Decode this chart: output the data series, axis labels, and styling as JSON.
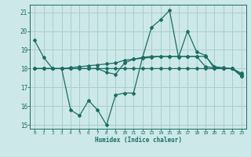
{
  "xlabel": "Humidex (Indice chaleur)",
  "background_color": "#cce8e8",
  "grid_color": "#aacece",
  "line_color": "#1a6e64",
  "xlim": [
    -0.5,
    23.5
  ],
  "ylim": [
    14.8,
    21.4
  ],
  "x": [
    0,
    1,
    2,
    3,
    4,
    5,
    6,
    7,
    8,
    9,
    10,
    11,
    12,
    13,
    14,
    15,
    16,
    17,
    18,
    19,
    20,
    21,
    22,
    23
  ],
  "line1": [
    19.5,
    18.6,
    18.0,
    18.0,
    15.8,
    15.5,
    16.3,
    15.8,
    15.0,
    16.6,
    16.7,
    16.7,
    18.6,
    20.2,
    20.6,
    21.1,
    18.6,
    20.0,
    18.9,
    18.7,
    18.0,
    18.0,
    18.0,
    17.6
  ],
  "line2": [
    18.0,
    18.0,
    18.0,
    18.0,
    18.05,
    18.1,
    18.15,
    18.2,
    18.25,
    18.3,
    18.45,
    18.5,
    18.55,
    18.6,
    18.65,
    18.65,
    18.65,
    18.65,
    18.65,
    18.65,
    18.1,
    18.05,
    18.0,
    17.75
  ],
  "line3": [
    18.0,
    18.0,
    18.0,
    18.0,
    18.0,
    18.0,
    18.0,
    18.0,
    18.0,
    18.0,
    18.0,
    18.0,
    18.0,
    18.0,
    18.0,
    18.0,
    18.0,
    18.0,
    18.0,
    18.0,
    18.0,
    18.0,
    18.0,
    17.6
  ],
  "line4": [
    18.0,
    18.0,
    18.0,
    18.0,
    18.0,
    18.0,
    18.0,
    18.0,
    17.8,
    17.7,
    18.3,
    18.5,
    18.6,
    18.65,
    18.65,
    18.65,
    18.65,
    18.65,
    18.65,
    18.1,
    18.05,
    18.0,
    18.0,
    17.7
  ],
  "yticks": [
    15,
    16,
    17,
    18,
    19,
    20,
    21
  ],
  "xticks": [
    0,
    1,
    2,
    3,
    4,
    5,
    6,
    7,
    8,
    9,
    10,
    11,
    12,
    13,
    14,
    15,
    16,
    17,
    18,
    19,
    20,
    21,
    22,
    23
  ]
}
